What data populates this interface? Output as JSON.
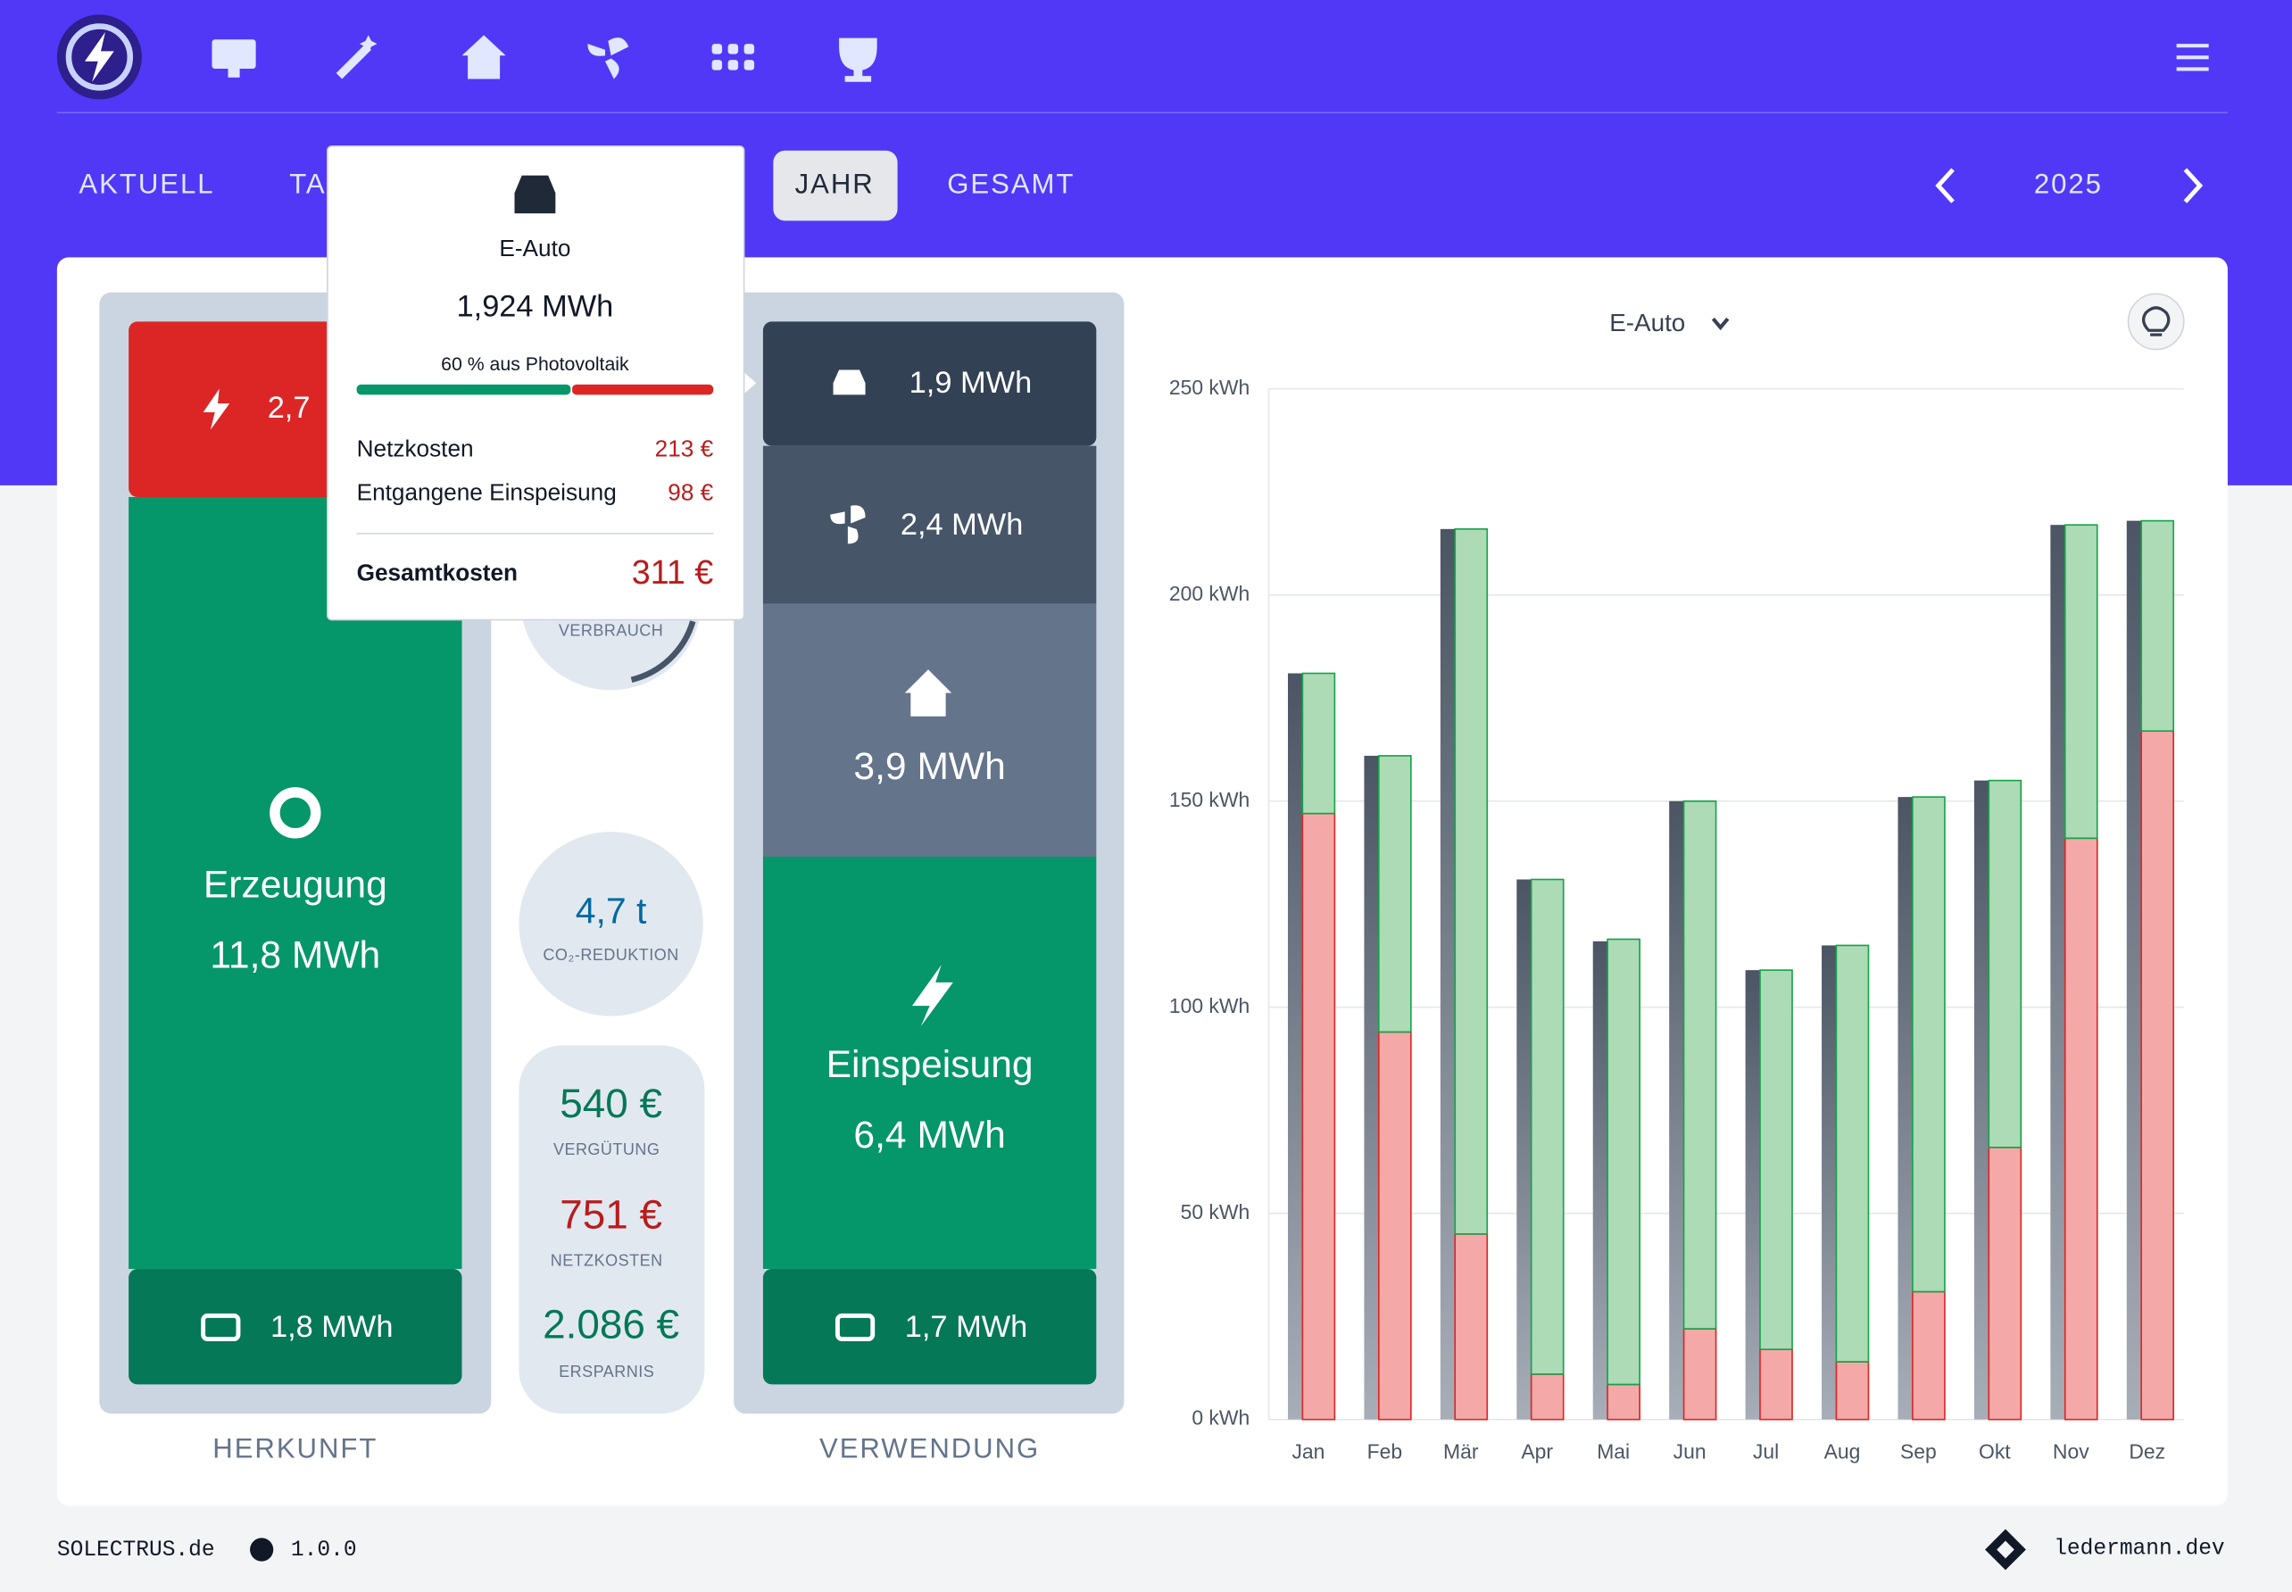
{
  "nav": {
    "tabs": [
      "AKTUELL",
      "TA",
      "JAHR",
      "GESAMT"
    ],
    "year": "2025"
  },
  "herkunft": {
    "grid": "2,7",
    "title": "Erzeugung",
    "value": "11,8 MWh",
    "battery": "1,8 MWh",
    "label": "HERKUNFT"
  },
  "mitte": {
    "gauge": "VERBRAUCH",
    "co2": "4,7 t",
    "co2_label": "CO₂-REDUKTION",
    "verguetung": "540 €",
    "verguetung_label": "VERGÜTUNG",
    "netzkosten": "751 €",
    "netzkosten_label": "NETZKOSTEN",
    "ersparnis": "2.086 €",
    "ersparnis_label": "ERSPARNIS"
  },
  "verwendung": {
    "car": "1,9 MWh",
    "heatpump": "2,4 MWh",
    "house": "3,9 MWh",
    "title": "Einspeisung",
    "value": "6,4 MWh",
    "battery": "1,7 MWh",
    "label": "VERWENDUNG"
  },
  "tooltip": {
    "title": "E-Auto",
    "value": "1,924 MWh",
    "pv_share": {
      "value": 60,
      "label": "60 % aus Photovoltaik"
    },
    "rows": [
      [
        "Netzkosten",
        "213 €"
      ],
      [
        "Entgangene Einspeisung",
        "98 €"
      ]
    ],
    "total": [
      "Gesamtkosten",
      "311 €"
    ]
  },
  "chart_data": {
    "type": "bar",
    "selector": "E-Auto",
    "categories": [
      "Jan",
      "Feb",
      "Mär",
      "Apr",
      "Mai",
      "Jun",
      "Jul",
      "Aug",
      "Sep",
      "Okt",
      "Nov",
      "Dez"
    ],
    "series": [
      {
        "color": "#4b5563",
        "values": [
          181,
          161,
          216,
          131,
          116,
          150,
          109,
          115,
          151,
          155,
          217,
          218
        ]
      },
      {
        "color": "#f4a9a8",
        "values": [
          147,
          94,
          45,
          11,
          8.5,
          22,
          17,
          14,
          31,
          66,
          141,
          167
        ]
      },
      {
        "color": "#acdbb6",
        "values": [
          34,
          67,
          171,
          120,
          108,
          128,
          92,
          101,
          120,
          89,
          76,
          51
        ]
      }
    ],
    "ylim": [
      0,
      250
    ],
    "yticks": [
      {
        "value": 0,
        "label": "0 kWh"
      },
      {
        "value": 50,
        "label": "50 kWh"
      },
      {
        "value": 100,
        "label": "100 kWh"
      },
      {
        "value": 150,
        "label": "150 kWh"
      },
      {
        "value": 200,
        "label": "200 kWh"
      },
      {
        "value": 250,
        "label": "250 kWh"
      }
    ],
    "grid": true
  },
  "footer": {
    "left": "SOLECTRUS.de",
    "version": "1.0.0",
    "right": "ledermann.dev"
  }
}
